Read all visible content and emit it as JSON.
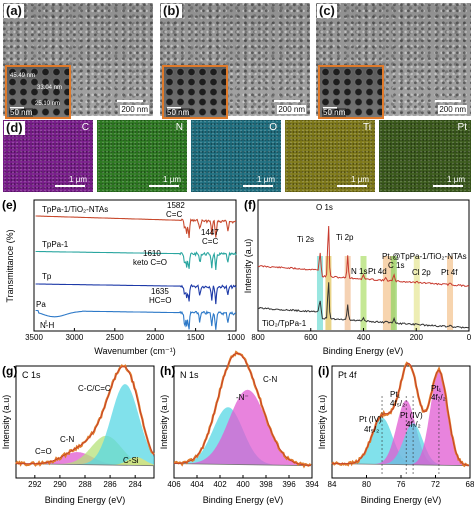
{
  "panels": {
    "a": {
      "label": "(a)",
      "scale_main": "200 nm",
      "scale_inset": "50 nm",
      "inset_labels": [
        "45.49 nm",
        "33.04 nm",
        "25.10 nm"
      ]
    },
    "b": {
      "label": "(b)",
      "scale_main": "200 nm",
      "scale_inset": "50 nm"
    },
    "c": {
      "label": "(c)",
      "scale_main": "200 nm",
      "scale_inset": "50 nm"
    },
    "d": {
      "label": "(d)",
      "maps": [
        {
          "element": "C",
          "color": "#7a1e8c",
          "scale": "1 μm"
        },
        {
          "element": "N",
          "color": "#2e7a22",
          "scale": "1 μm"
        },
        {
          "element": "O",
          "color": "#1f6f80",
          "scale": "1 μm"
        },
        {
          "element": "Ti",
          "color": "#7f7a1a",
          "scale": "1 μm"
        },
        {
          "element": "Pt",
          "color": "#3b5a1c",
          "scale": "1 μm"
        }
      ]
    }
  },
  "chart_data": [
    {
      "id": "e",
      "type": "line",
      "panel_label": "(e)",
      "xlabel": "Wavenumber (cm⁻¹)",
      "ylabel": "Transmittance (%)",
      "xlim": [
        3500,
        1000
      ],
      "xticks": [
        3500,
        3000,
        2500,
        2000,
        1500,
        1000
      ],
      "series": [
        {
          "name": "TpPa-1/TiO₂-NTAs",
          "color": "#c84a2e"
        },
        {
          "name": "TpPa-1",
          "color": "#2aa6a0"
        },
        {
          "name": "Tp",
          "color": "#1e3aa8"
        },
        {
          "name": "Pa",
          "color": "#2d79c8"
        }
      ],
      "annotations": [
        "1582",
        "C=C",
        "1447",
        "C=C",
        "1610",
        "keto C=O",
        "1635",
        "HC=O",
        "N-H"
      ]
    },
    {
      "id": "f",
      "type": "line",
      "panel_label": "(f)",
      "xlabel": "Binding Energy (eV)",
      "ylabel": "Intensity (a.u)",
      "xlim": [
        800,
        0
      ],
      "xticks": [
        800,
        600,
        400,
        200,
        0
      ],
      "series": [
        {
          "name": "Pt₁@TpPa-1/TiO₂-NTAs",
          "color": "#c83a2e"
        },
        {
          "name": "TiO₂/TpPa-1",
          "color": "#333333"
        }
      ],
      "annotations": [
        "O 1s",
        "Ti 2s",
        "Ti 2p",
        "N 1s",
        "Pt 4d",
        "C 1s",
        "Cl 2p",
        "Pt 4f"
      ]
    },
    {
      "id": "g",
      "type": "line",
      "panel_label": "(g)",
      "title": "C 1s",
      "xlabel": "Binding Energy (eV)",
      "ylabel": "Intensity (a.u)",
      "xlim": [
        293.5,
        282.5
      ],
      "xticks": [
        292,
        290,
        288,
        286,
        284
      ],
      "peaks": [
        {
          "name": "C=O",
          "center": 288.6,
          "height": 0.12,
          "width": 1.2,
          "color": "#e05ad2"
        },
        {
          "name": "C-N",
          "center": 286.3,
          "height": 0.28,
          "width": 1.2,
          "color": "#b6e27a"
        },
        {
          "name": "C-C/C=C",
          "center": 284.8,
          "height": 0.78,
          "width": 1.1,
          "color": "#57d7e4"
        },
        {
          "name": "C-Si",
          "center": 283.9,
          "height": 0.08,
          "width": 0.7,
          "color": "#e8e36a"
        }
      ],
      "labels": [
        "C=O",
        "C-N",
        "C-C/C=C",
        "C-Si"
      ]
    },
    {
      "id": "h",
      "type": "line",
      "panel_label": "(h)",
      "title": "N 1s",
      "xlabel": "Binding Energy (eV)",
      "ylabel": "Intensity (a.u)",
      "xlim": [
        406,
        394
      ],
      "xticks": [
        406,
        404,
        402,
        400,
        398,
        396,
        394
      ],
      "peaks": [
        {
          "name": "-N⁻",
          "center": 401.3,
          "height": 0.55,
          "width": 1.3,
          "color": "#57d7e4"
        },
        {
          "name": "C-N",
          "center": 399.6,
          "height": 0.72,
          "width": 1.6,
          "color": "#e05ad2"
        }
      ],
      "labels": [
        "-N⁻",
        "C-N"
      ]
    },
    {
      "id": "i",
      "type": "line",
      "panel_label": "(i)",
      "title": "Pt 4f",
      "xlabel": "Binding Energy (eV)",
      "ylabel": "Intensity (a.u)",
      "xlim": [
        84,
        68
      ],
      "xticks": [
        84,
        80,
        76,
        72,
        68
      ],
      "peaks": [
        {
          "name": "Pt (IV) 4f5/2",
          "center": 78.2,
          "height": 0.45,
          "width": 1.2,
          "color": "#57d7e4"
        },
        {
          "name": "Pt1 4f5/2",
          "center": 75.4,
          "height": 0.62,
          "width": 1.1,
          "color": "#e05ad2"
        },
        {
          "name": "Pt (IV) 4f7/2",
          "center": 74.6,
          "height": 0.4,
          "width": 1.1,
          "color": "#57d7e4"
        },
        {
          "name": "Pt1 4f7/2",
          "center": 71.6,
          "height": 0.9,
          "width": 1.0,
          "color": "#e05ad2"
        }
      ],
      "labels": [
        "Pt (IV)",
        "4f₅/₂",
        "Pt₁",
        "4f₅/₂",
        "Pt (IV)",
        "4f₇/₂",
        "Pt₁",
        "4f₇/₂"
      ]
    }
  ]
}
